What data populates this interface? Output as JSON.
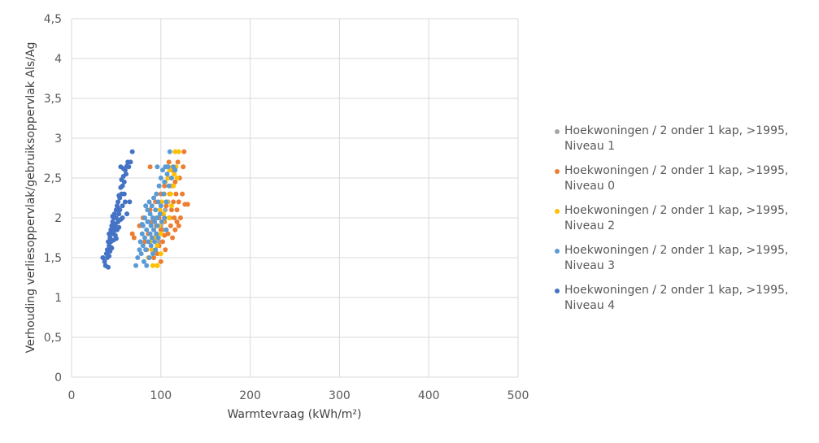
{
  "chart_data": {
    "type": "scatter",
    "title": "",
    "xlabel": "Warmtevraag (kWh/m²)",
    "ylabel": "Verhouding verliesoppervlak/gebruiksoppervlak Als/Ag",
    "xlim": [
      0,
      500
    ],
    "ylim": [
      0,
      4.5
    ],
    "xticks": [
      "0",
      "100",
      "200",
      "300",
      "400",
      "500"
    ],
    "yticks": [
      "0",
      "0,5",
      "1",
      "1,5",
      "2",
      "2,5",
      "3",
      "3,5",
      "4",
      "4,5"
    ],
    "grid": true,
    "legend_position": "right",
    "series": [
      {
        "name": "Hoekwoningen / 2 onder 1 kap, >1995, Niveau 1",
        "color": "#a5a5a5",
        "points": [
          [
            90,
            1.6
          ],
          [
            95,
            1.8
          ],
          [
            100,
            1.9
          ],
          [
            105,
            2.1
          ],
          [
            98,
            1.7
          ],
          [
            92,
            1.5
          ],
          [
            108,
            2.2
          ],
          [
            112,
            2.4
          ],
          [
            96,
            2.0
          ],
          [
            102,
            1.85
          ]
        ]
      },
      {
        "name": "Hoekwoningen / 2 onder 1 kap, >1995, Niveau 0",
        "color": "#ed7d31",
        "points": [
          [
            68,
            1.8
          ],
          [
            70,
            1.75
          ],
          [
            76,
            1.9
          ],
          [
            80,
            2.0
          ],
          [
            82,
            1.7
          ],
          [
            84,
            1.6
          ],
          [
            86,
            1.8
          ],
          [
            88,
            2.1
          ],
          [
            88,
            2.64
          ],
          [
            90,
            1.95
          ],
          [
            92,
            1.5
          ],
          [
            92,
            1.75
          ],
          [
            94,
            2.2
          ],
          [
            95,
            1.9
          ],
          [
            96,
            1.55
          ],
          [
            98,
            2.0
          ],
          [
            98,
            1.65
          ],
          [
            100,
            2.3
          ],
          [
            100,
            1.85
          ],
          [
            102,
            2.05
          ],
          [
            102,
            1.7
          ],
          [
            104,
            2.4
          ],
          [
            104,
            1.95
          ],
          [
            105,
            1.6
          ],
          [
            106,
            2.15
          ],
          [
            107,
            2.64
          ],
          [
            108,
            1.8
          ],
          [
            108,
            2.5
          ],
          [
            110,
            2.0
          ],
          [
            110,
            2.3
          ],
          [
            111,
            1.9
          ],
          [
            112,
            2.1
          ],
          [
            112,
            2.6
          ],
          [
            113,
            1.75
          ],
          [
            114,
            2.2
          ],
          [
            115,
            2.0
          ],
          [
            116,
            2.45
          ],
          [
            116,
            1.85
          ],
          [
            117,
            2.3
          ],
          [
            118,
            2.1
          ],
          [
            118,
            1.95
          ],
          [
            119,
            2.7
          ],
          [
            120,
            2.2
          ],
          [
            120,
            1.9
          ],
          [
            121,
            2.5
          ],
          [
            122,
            2.0
          ],
          [
            124,
            2.3
          ],
          [
            125,
            2.64
          ],
          [
            126,
            2.83
          ],
          [
            127,
            2.17
          ],
          [
            130,
            2.17
          ],
          [
            100,
            1.45
          ],
          [
            96,
            1.4
          ],
          [
            104,
            1.78
          ],
          [
            109,
            2.7
          ]
        ]
      },
      {
        "name": "Hoekwoningen / 2 onder 1 kap, >1995, Niveau 2",
        "color": "#ffc000",
        "points": [
          [
            86,
            1.5
          ],
          [
            88,
            1.7
          ],
          [
            90,
            1.6
          ],
          [
            92,
            1.85
          ],
          [
            94,
            1.75
          ],
          [
            95,
            2.0
          ],
          [
            96,
            1.65
          ],
          [
            98,
            1.9
          ],
          [
            99,
            2.1
          ],
          [
            100,
            1.8
          ],
          [
            101,
            2.2
          ],
          [
            102,
            1.95
          ],
          [
            103,
            2.05
          ],
          [
            104,
            2.3
          ],
          [
            105,
            2.45
          ],
          [
            106,
            1.85
          ],
          [
            107,
            2.2
          ],
          [
            108,
            2.5
          ],
          [
            109,
            2.0
          ],
          [
            110,
            2.6
          ],
          [
            111,
            2.3
          ],
          [
            112,
            2.15
          ],
          [
            113,
            2.64
          ],
          [
            114,
            2.4
          ],
          [
            115,
            2.55
          ],
          [
            116,
            2.83
          ],
          [
            117,
            2.64
          ],
          [
            118,
            2.5
          ],
          [
            120,
            2.83
          ],
          [
            96,
            1.4
          ],
          [
            100,
            1.55
          ],
          [
            91,
            1.4
          ]
        ]
      },
      {
        "name": "Hoekwoningen / 2 onder 1 kap, >1995, Niveau 3",
        "color": "#5b9bd5",
        "points": [
          [
            72,
            1.4
          ],
          [
            74,
            1.5
          ],
          [
            76,
            1.6
          ],
          [
            77,
            1.7
          ],
          [
            78,
            1.55
          ],
          [
            79,
            1.8
          ],
          [
            80,
            1.65
          ],
          [
            80,
            1.9
          ],
          [
            81,
            1.45
          ],
          [
            82,
            1.75
          ],
          [
            82,
            2.0
          ],
          [
            83,
            1.6
          ],
          [
            84,
            1.85
          ],
          [
            84,
            1.4
          ],
          [
            85,
            2.1
          ],
          [
            86,
            1.7
          ],
          [
            86,
            1.95
          ],
          [
            87,
            1.5
          ],
          [
            87,
            2.2
          ],
          [
            88,
            1.8
          ],
          [
            88,
            2.05
          ],
          [
            89,
            1.65
          ],
          [
            89,
            1.9
          ],
          [
            90,
            2.15
          ],
          [
            90,
            1.75
          ],
          [
            91,
            1.55
          ],
          [
            91,
            2.0
          ],
          [
            92,
            1.85
          ],
          [
            92,
            2.25
          ],
          [
            93,
            1.7
          ],
          [
            93,
            1.95
          ],
          [
            94,
            2.1
          ],
          [
            94,
            1.6
          ],
          [
            95,
            1.8
          ],
          [
            95,
            2.3
          ],
          [
            96,
            2.0
          ],
          [
            96,
            1.9
          ],
          [
            97,
            2.2
          ],
          [
            97,
            1.75
          ],
          [
            98,
            2.4
          ],
          [
            99,
            2.05
          ],
          [
            100,
            2.5
          ],
          [
            100,
            2.15
          ],
          [
            101,
            1.95
          ],
          [
            102,
            2.6
          ],
          [
            103,
            2.3
          ],
          [
            104,
            2.45
          ],
          [
            105,
            2.64
          ],
          [
            106,
            2.2
          ],
          [
            107,
            2.55
          ],
          [
            108,
            2.64
          ],
          [
            109,
            2.4
          ],
          [
            110,
            2.83
          ],
          [
            112,
            2.5
          ],
          [
            114,
            2.64
          ],
          [
            116,
            2.6
          ],
          [
            96,
            2.64
          ],
          [
            104,
            2.0
          ],
          [
            106,
            1.85
          ],
          [
            85,
            1.95
          ],
          [
            83,
            2.15
          ],
          [
            79,
            1.92
          ]
        ]
      },
      {
        "name": "Hoekwoningen / 2 onder 1 kap, >1995, Niveau 4",
        "color": "#4472c4",
        "points": [
          [
            35,
            1.5
          ],
          [
            37,
            1.45
          ],
          [
            38,
            1.4
          ],
          [
            39,
            1.55
          ],
          [
            40,
            1.6
          ],
          [
            40,
            1.5
          ],
          [
            41,
            1.7
          ],
          [
            41,
            1.38
          ],
          [
            42,
            1.65
          ],
          [
            42,
            1.8
          ],
          [
            43,
            1.75
          ],
          [
            43,
            1.58
          ],
          [
            44,
            1.85
          ],
          [
            44,
            1.7
          ],
          [
            45,
            1.9
          ],
          [
            45,
            1.62
          ],
          [
            46,
            1.8
          ],
          [
            46,
            1.95
          ],
          [
            47,
            2.0
          ],
          [
            47,
            1.72
          ],
          [
            48,
            1.88
          ],
          [
            48,
            2.05
          ],
          [
            49,
            1.92
          ],
          [
            49,
            1.78
          ],
          [
            50,
            2.1
          ],
          [
            50,
            2.0
          ],
          [
            51,
            1.85
          ],
          [
            51,
            2.15
          ],
          [
            52,
            2.2
          ],
          [
            52,
            1.95
          ],
          [
            53,
            2.05
          ],
          [
            53,
            2.28
          ],
          [
            54,
            2.25
          ],
          [
            54,
            2.1
          ],
          [
            55,
            2.38
          ],
          [
            55,
            1.98
          ],
          [
            56,
            2.3
          ],
          [
            56,
            2.48
          ],
          [
            57,
            2.4
          ],
          [
            57,
            2.15
          ],
          [
            58,
            2.52
          ],
          [
            59,
            2.45
          ],
          [
            60,
            2.6
          ],
          [
            60,
            2.2
          ],
          [
            61,
            2.55
          ],
          [
            62,
            2.65
          ],
          [
            63,
            2.7
          ],
          [
            64,
            2.64
          ],
          [
            65,
            2.2
          ],
          [
            66,
            2.7
          ],
          [
            68,
            2.83
          ],
          [
            58,
            2.62
          ],
          [
            55,
            2.64
          ],
          [
            57,
            2.0
          ],
          [
            59,
            2.3
          ],
          [
            62,
            2.05
          ],
          [
            53,
            1.88
          ],
          [
            50,
            1.74
          ],
          [
            47,
            1.83
          ],
          [
            44,
            1.63
          ],
          [
            42,
            1.52
          ],
          [
            46,
            2.02
          ],
          [
            52,
            2.12
          ]
        ]
      }
    ]
  }
}
